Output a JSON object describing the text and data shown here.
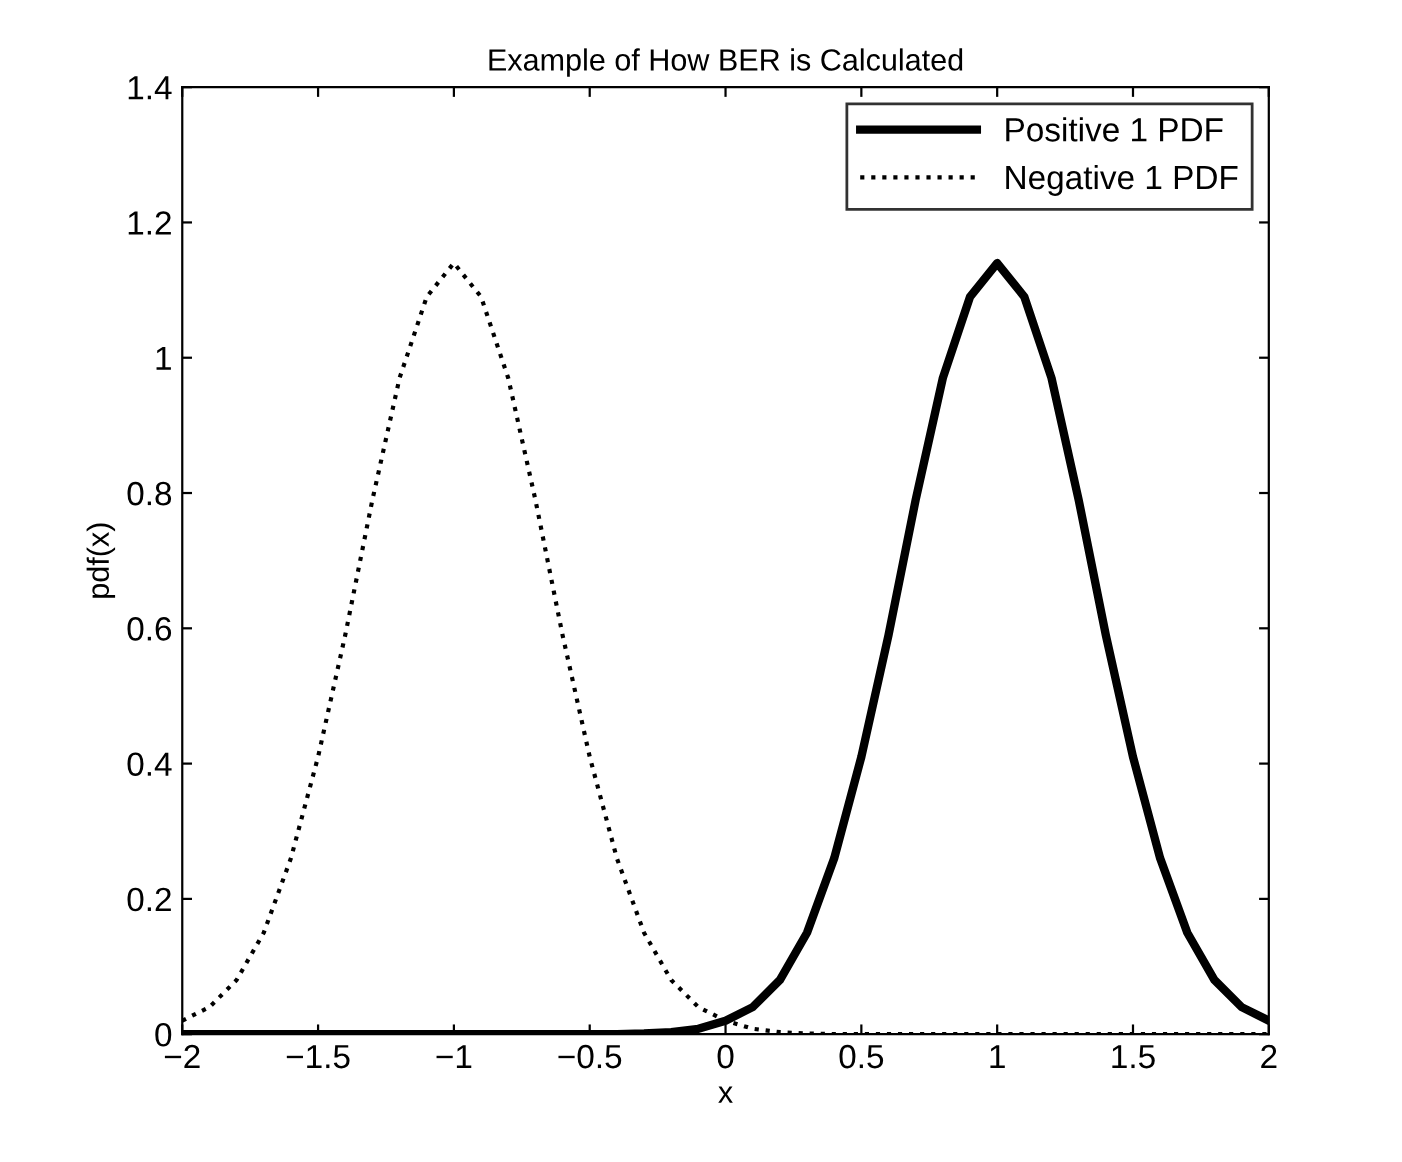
{
  "chart_data": {
    "type": "line",
    "title": "Example of How BER is Calculated",
    "xlabel": "x",
    "ylabel": "pdf(x)",
    "x": [
      -2,
      -1.9,
      -1.8,
      -1.7,
      -1.6,
      -1.5,
      -1.4,
      -1.3,
      -1.2,
      -1.1,
      -1,
      -0.9,
      -0.8,
      -0.7,
      -0.6,
      -0.5,
      -0.4,
      -0.3,
      -0.2,
      -0.1,
      0,
      0.1,
      0.2,
      0.3,
      0.4,
      0.5,
      0.6,
      0.7,
      0.8,
      0.9,
      1,
      1.1,
      1.2,
      1.3,
      1.4,
      1.5,
      1.6,
      1.7,
      1.8,
      1.9,
      2
    ],
    "series": [
      {
        "name": "Positive 1 PDF",
        "color": "#000000",
        "line_style": "solid",
        "values": [
          0,
          0,
          0,
          0,
          0,
          0,
          0,
          0,
          0,
          0,
          0,
          0,
          0,
          0,
          0,
          0,
          0,
          0.001,
          0.003,
          0.008,
          0.02,
          0.04,
          0.08,
          0.15,
          0.26,
          0.41,
          0.59,
          0.79,
          0.97,
          1.09,
          1.14,
          1.09,
          0.97,
          0.79,
          0.59,
          0.41,
          0.26,
          0.15,
          0.08,
          0.04,
          0.02
        ]
      },
      {
        "name": "Negative 1 PDF",
        "color": "#000000",
        "line_style": "dotted",
        "values": [
          0.02,
          0.04,
          0.08,
          0.15,
          0.26,
          0.41,
          0.59,
          0.79,
          0.97,
          1.09,
          1.14,
          1.09,
          0.97,
          0.79,
          0.59,
          0.41,
          0.26,
          0.15,
          0.08,
          0.04,
          0.02,
          0.008,
          0.003,
          0.001,
          0,
          0,
          0,
          0,
          0,
          0,
          0,
          0,
          0,
          0,
          0,
          0,
          0,
          0,
          0,
          0,
          0
        ]
      }
    ],
    "xlim": [
      -2,
      2
    ],
    "ylim": [
      0,
      1.4
    ],
    "xticks": [
      -2,
      -1.5,
      -1,
      -0.5,
      0,
      0.5,
      1,
      1.5,
      2
    ],
    "yticks": [
      0,
      0.2,
      0.4,
      0.6,
      0.8,
      1,
      1.2,
      1.4
    ],
    "grid": false,
    "legend": "top right"
  }
}
